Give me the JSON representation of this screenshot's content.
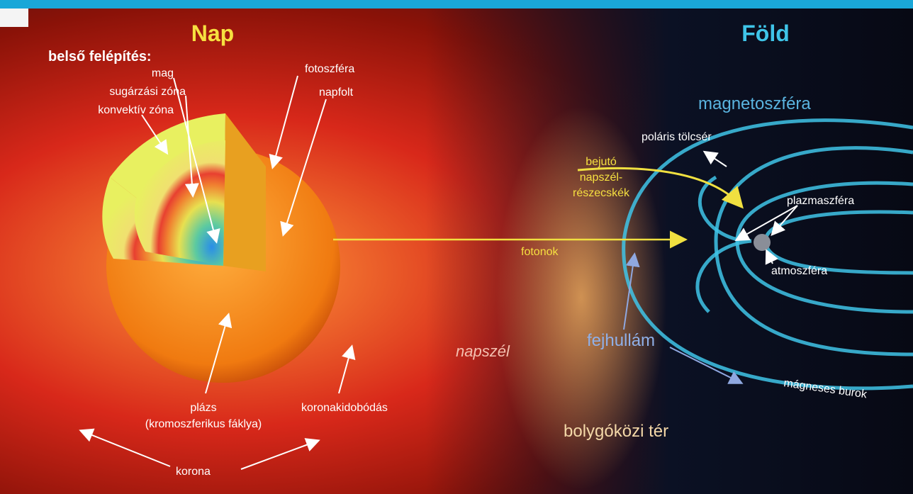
{
  "title_sun": "Nap",
  "title_earth": "Föld",
  "sun_labels": {
    "heading": "belső felépítés:",
    "core": "mag",
    "radiative": "sugárzási zóna",
    "convective": "konvektív zóna",
    "photosphere": "fotoszféra",
    "sunspot": "napfolt",
    "plage": "plázs",
    "plage_note": "(kromoszferikus fáklya)",
    "cme": "koronakidobódás",
    "corona": "korona"
  },
  "space_labels": {
    "photons": "fotonok",
    "solar_wind": "napszél",
    "interplanetary": "bolygóközi tér",
    "bow_shock": "fejhullám"
  },
  "earth_labels": {
    "magnetosphere": "magnetoszféra",
    "polar_cusp": "poláris tölcsér",
    "entering_1": "bejutó",
    "entering_2": "napszél-",
    "entering_3": "részecskék",
    "plasmasphere": "plazmaszféra",
    "atmosphere": "atmoszféra",
    "magnetosheath": "mágneses burok"
  }
}
